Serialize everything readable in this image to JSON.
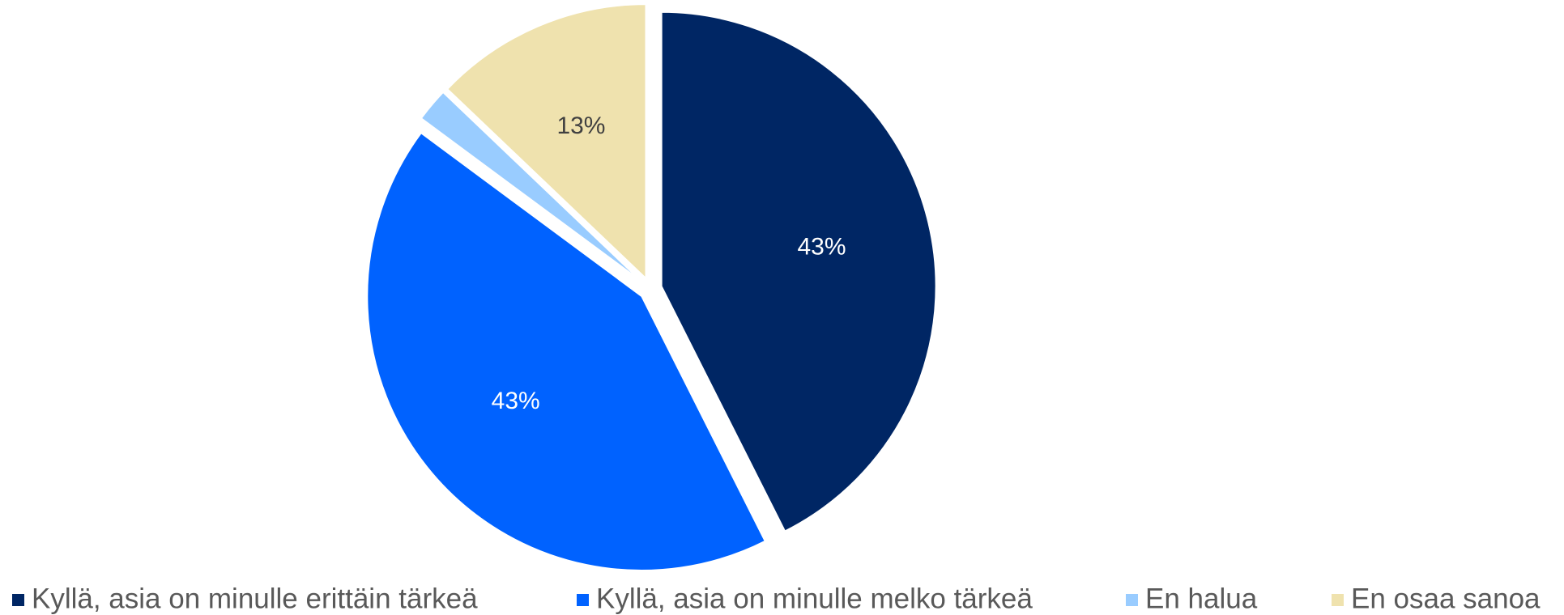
{
  "chart_data": {
    "type": "pie",
    "categories": [
      "Kyllä, asia on minulle erittäin tärkeä",
      "Kyllä, asia on minulle melko tärkeä",
      "En halua",
      "En osaa sanoa"
    ],
    "values": [
      43,
      43,
      2,
      13
    ],
    "value_labels": [
      "43%",
      "43%",
      null,
      "13%"
    ],
    "colors": [
      "#002664",
      "#0062ff",
      "#99ccff",
      "#efe2ae"
    ],
    "label_colors": [
      "#ffffff",
      "#ffffff",
      "#ffffff",
      "#404040"
    ],
    "legend": "bottom"
  }
}
